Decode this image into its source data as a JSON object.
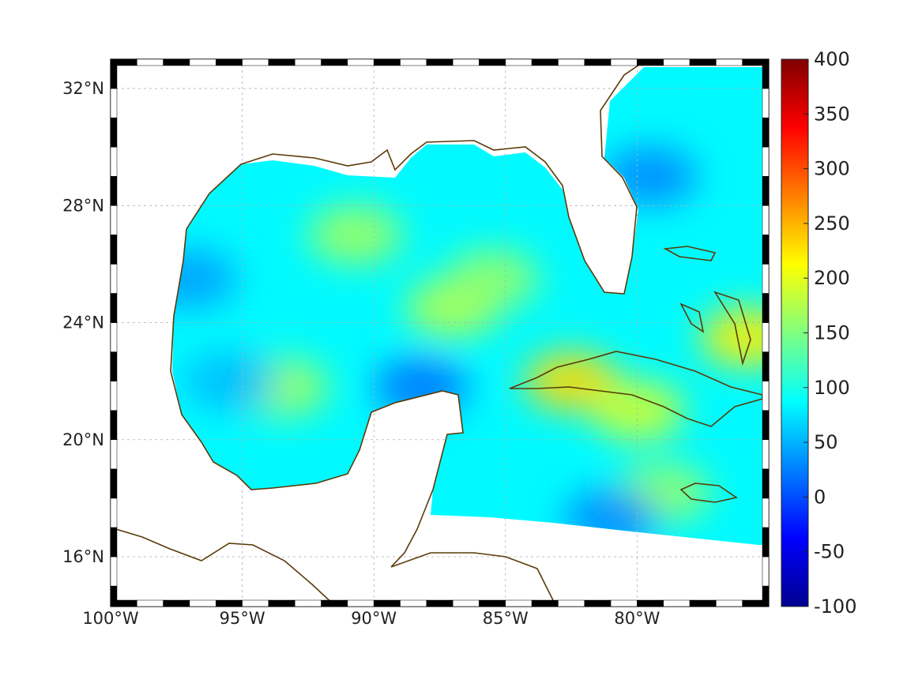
{
  "map": {
    "lat_labels": [
      "32°N",
      "28°N",
      "24°N",
      "20°N",
      "16°N"
    ],
    "lon_labels": [
      "100°W",
      "95°W",
      "90°W",
      "85°W",
      "80°W"
    ],
    "lat_values": [
      32,
      28,
      24,
      20,
      16
    ],
    "lon_values": [
      -100,
      -95,
      -90,
      -85,
      -80
    ],
    "extent": {
      "lon_min": -100,
      "lon_max": -75,
      "lat_min": 14.3,
      "lat_max": 33
    },
    "grid": true,
    "coast_color": "#5a3a08",
    "land_color": "#ffffff"
  },
  "colorbar": {
    "labels": [
      "400",
      "350",
      "300",
      "250",
      "200",
      "150",
      "100",
      "50",
      "0",
      "-50",
      "-100"
    ],
    "min": -100,
    "max": 400,
    "colormap": "jet",
    "placement": "right"
  },
  "field": {
    "description_units": "",
    "base_value": 85,
    "highs": [
      {
        "lon": -82.5,
        "lat": 22.0,
        "value": 230
      },
      {
        "lon": -80.0,
        "lat": 21.0,
        "value": 190
      },
      {
        "lon": -75.8,
        "lat": 23.5,
        "value": 220
      },
      {
        "lon": -87.0,
        "lat": 24.5,
        "value": 175
      },
      {
        "lon": -90.7,
        "lat": 27.0,
        "value": 165
      },
      {
        "lon": -93.5,
        "lat": 21.8,
        "value": 165
      },
      {
        "lon": -85.5,
        "lat": 25.5,
        "value": 160
      },
      {
        "lon": -79.0,
        "lat": 18.2,
        "value": 160
      }
    ],
    "lows": [
      {
        "lon": -88.2,
        "lat": 21.8,
        "value": 20
      },
      {
        "lon": -79.5,
        "lat": 29.0,
        "value": 30
      },
      {
        "lon": -81.0,
        "lat": 17.3,
        "value": 30
      },
      {
        "lon": -97.0,
        "lat": 25.5,
        "value": 40
      },
      {
        "lon": -95.5,
        "lat": 22.0,
        "value": 55
      }
    ]
  }
}
